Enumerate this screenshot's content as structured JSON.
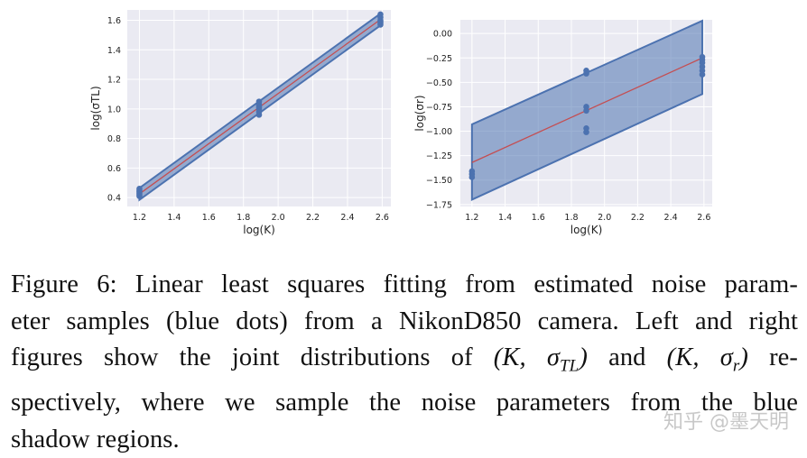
{
  "chart_data": [
    {
      "type": "scatter",
      "subtype": "linear-fit-with-band",
      "xlabel": "log(K)",
      "ylabel": "log(σTL)",
      "xlim": [
        1.13,
        2.65
      ],
      "ylim": [
        0.34,
        1.67
      ],
      "xticks": [
        1.2,
        1.4,
        1.6,
        1.8,
        2.0,
        2.2,
        2.4,
        2.6
      ],
      "xtick_labels": [
        "1.2",
        "1.4",
        "1.6",
        "1.8",
        "2.0",
        "2.2",
        "2.4",
        "2.6"
      ],
      "yticks": [
        0.4,
        0.6,
        0.8,
        1.0,
        1.2,
        1.4,
        1.6
      ],
      "ytick_labels": [
        "0.4",
        "0.6",
        "0.8",
        "1.0",
        "1.2",
        "1.4",
        "1.6"
      ],
      "fit_line": {
        "x": [
          1.2,
          2.59
        ],
        "y": [
          0.425,
          1.605
        ]
      },
      "band": {
        "x": [
          1.2,
          2.59
        ],
        "lower": [
          0.385,
          1.565
        ],
        "upper": [
          0.465,
          1.645
        ]
      },
      "points": {
        "x": [
          1.2,
          1.2,
          1.2,
          1.2,
          1.2,
          1.2,
          1.89,
          1.89,
          1.89,
          1.89,
          1.89,
          1.89,
          1.89,
          2.59,
          2.59,
          2.59,
          2.59,
          2.59,
          2.59
        ],
        "y": [
          0.41,
          0.42,
          0.43,
          0.44,
          0.45,
          0.46,
          0.96,
          0.98,
          1.0,
          1.01,
          1.02,
          1.03,
          1.05,
          1.57,
          1.58,
          1.59,
          1.6,
          1.62,
          1.64
        ]
      }
    },
    {
      "type": "scatter",
      "subtype": "linear-fit-with-band",
      "xlabel": "log(K)",
      "ylabel": "log(σr)",
      "xlim": [
        1.13,
        2.65
      ],
      "ylim": [
        -1.77,
        0.14
      ],
      "xticks": [
        1.2,
        1.4,
        1.6,
        1.8,
        2.0,
        2.2,
        2.4,
        2.6
      ],
      "xtick_labels": [
        "1.2",
        "1.4",
        "1.6",
        "1.8",
        "2.0",
        "2.2",
        "2.4",
        "2.6"
      ],
      "yticks": [
        0.0,
        -0.25,
        -0.5,
        -0.75,
        -1.0,
        -1.25,
        -1.5,
        -1.75
      ],
      "ytick_labels": [
        "0.00",
        "−0.25",
        "−0.50",
        "−0.75",
        "−1.00",
        "−1.25",
        "−1.50",
        "−1.75"
      ],
      "fit_line": {
        "x": [
          1.2,
          2.59
        ],
        "y": [
          -1.32,
          -0.25
        ]
      },
      "band": {
        "x": [
          1.2,
          2.59
        ],
        "lower": [
          -1.7,
          -0.62
        ],
        "upper": [
          -0.93,
          0.13
        ]
      },
      "points": {
        "x": [
          1.2,
          1.2,
          1.2,
          1.89,
          1.89,
          1.89,
          1.89,
          1.89,
          1.89,
          2.59,
          2.59,
          2.59,
          2.59,
          2.59,
          2.59
        ],
        "y": [
          -1.47,
          -1.44,
          -1.41,
          -0.41,
          -0.38,
          -0.79,
          -0.75,
          -1.01,
          -0.97,
          -0.42,
          -0.38,
          -0.34,
          -0.3,
          -0.27,
          -0.24
        ]
      }
    }
  ],
  "caption": {
    "lead": "Figure 6: Linear least squares fitting from estimated noise param-",
    "l2": "eter samples (blue dots) from a NikonD850 camera. Left and right",
    "l3a": "figures show the joint distributions of ",
    "m1": "(K, σ",
    "m1sub": "TL",
    "m1end": ")",
    "l3b": " and ",
    "m2": "(K, σ",
    "m2sub": "r",
    "m2end": ")",
    "l3c": " re-",
    "l4": "spectively, where we sample the noise parameters from the blue",
    "l5": "shadow regions."
  },
  "watermark": "知乎 @墨天明",
  "colors": {
    "plot_bg": "#eaeaf2",
    "grid": "#ffffff",
    "band_fill": "#4c72b0",
    "band_edge": "#4c72b0",
    "fit_line": "#c44e52",
    "points": "#4c72b0"
  }
}
